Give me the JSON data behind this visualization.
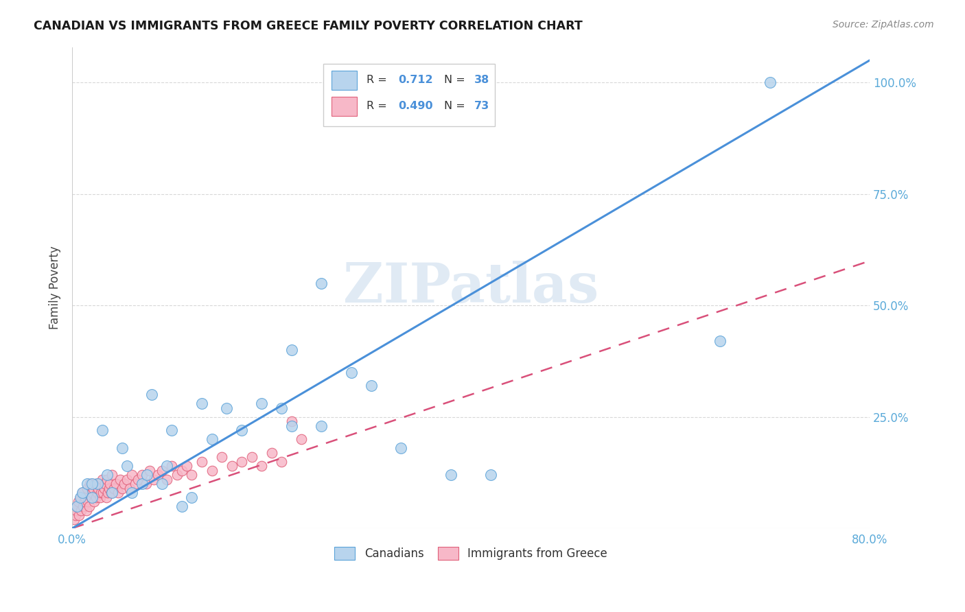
{
  "title": "CANADIAN VS IMMIGRANTS FROM GREECE FAMILY POVERTY CORRELATION CHART",
  "source": "Source: ZipAtlas.com",
  "ylabel": "Family Poverty",
  "watermark": "ZIPatlas",
  "canadians_R": 0.712,
  "canadians_N": 38,
  "immigrants_R": 0.49,
  "immigrants_N": 73,
  "xlim": [
    0.0,
    0.8
  ],
  "ylim": [
    0.0,
    1.08
  ],
  "xtick_positions": [
    0.0,
    0.1,
    0.2,
    0.3,
    0.4,
    0.5,
    0.6,
    0.7,
    0.8
  ],
  "xtick_labels": [
    "0.0%",
    "",
    "",
    "",
    "",
    "",
    "",
    "",
    "80.0%"
  ],
  "ytick_positions": [
    0.0,
    0.25,
    0.5,
    0.75,
    1.0
  ],
  "ytick_labels_right": [
    "",
    "25.0%",
    "50.0%",
    "75.0%",
    "100.0%"
  ],
  "color_canadian_face": "#b8d4ed",
  "color_canadian_edge": "#5ba3d9",
  "color_immigrant_face": "#f7b8c8",
  "color_immigrant_edge": "#e0607a",
  "line_color_canadian": "#4a90d9",
  "line_color_immigrant": "#d9507a",
  "can_line_x": [
    0.0,
    0.8
  ],
  "can_line_y": [
    0.0,
    1.05
  ],
  "imm_line_x": [
    0.0,
    0.8
  ],
  "imm_line_y": [
    0.0,
    0.6
  ],
  "canadians_x": [
    0.005,
    0.008,
    0.01,
    0.015,
    0.02,
    0.025,
    0.03,
    0.04,
    0.05,
    0.06,
    0.07,
    0.08,
    0.09,
    0.1,
    0.11,
    0.12,
    0.13,
    0.14,
    0.155,
    0.17,
    0.19,
    0.21,
    0.22,
    0.25,
    0.28,
    0.3,
    0.33,
    0.22,
    0.38,
    0.02,
    0.035,
    0.055,
    0.075,
    0.095,
    0.42,
    0.65,
    0.7,
    0.25
  ],
  "canadians_y": [
    0.05,
    0.07,
    0.08,
    0.1,
    0.07,
    0.1,
    0.22,
    0.08,
    0.18,
    0.08,
    0.1,
    0.3,
    0.1,
    0.22,
    0.05,
    0.07,
    0.28,
    0.2,
    0.27,
    0.22,
    0.28,
    0.27,
    0.23,
    0.23,
    0.35,
    0.32,
    0.18,
    0.4,
    0.12,
    0.1,
    0.12,
    0.14,
    0.12,
    0.14,
    0.12,
    0.42,
    1.0,
    0.55
  ],
  "immigrants_x": [
    0.002,
    0.003,
    0.004,
    0.005,
    0.006,
    0.007,
    0.008,
    0.009,
    0.01,
    0.011,
    0.012,
    0.013,
    0.014,
    0.015,
    0.016,
    0.017,
    0.018,
    0.019,
    0.02,
    0.021,
    0.022,
    0.023,
    0.024,
    0.025,
    0.026,
    0.027,
    0.028,
    0.029,
    0.03,
    0.031,
    0.032,
    0.033,
    0.034,
    0.035,
    0.036,
    0.037,
    0.038,
    0.039,
    0.04,
    0.042,
    0.044,
    0.046,
    0.048,
    0.05,
    0.052,
    0.055,
    0.058,
    0.06,
    0.063,
    0.066,
    0.07,
    0.074,
    0.078,
    0.082,
    0.086,
    0.09,
    0.095,
    0.1,
    0.105,
    0.11,
    0.115,
    0.12,
    0.13,
    0.14,
    0.15,
    0.16,
    0.17,
    0.18,
    0.19,
    0.2,
    0.21,
    0.22,
    0.23
  ],
  "immigrants_y": [
    0.02,
    0.03,
    0.04,
    0.05,
    0.06,
    0.03,
    0.07,
    0.04,
    0.08,
    0.05,
    0.06,
    0.07,
    0.04,
    0.09,
    0.06,
    0.05,
    0.1,
    0.07,
    0.08,
    0.09,
    0.06,
    0.1,
    0.07,
    0.08,
    0.09,
    0.1,
    0.07,
    0.08,
    0.11,
    0.08,
    0.09,
    0.1,
    0.07,
    0.11,
    0.08,
    0.09,
    0.1,
    0.08,
    0.12,
    0.09,
    0.1,
    0.08,
    0.11,
    0.09,
    0.1,
    0.11,
    0.09,
    0.12,
    0.1,
    0.11,
    0.12,
    0.1,
    0.13,
    0.11,
    0.12,
    0.13,
    0.11,
    0.14,
    0.12,
    0.13,
    0.14,
    0.12,
    0.15,
    0.13,
    0.16,
    0.14,
    0.15,
    0.16,
    0.14,
    0.17,
    0.15,
    0.24,
    0.2
  ],
  "background_color": "#ffffff",
  "grid_color": "#d8d8d8"
}
